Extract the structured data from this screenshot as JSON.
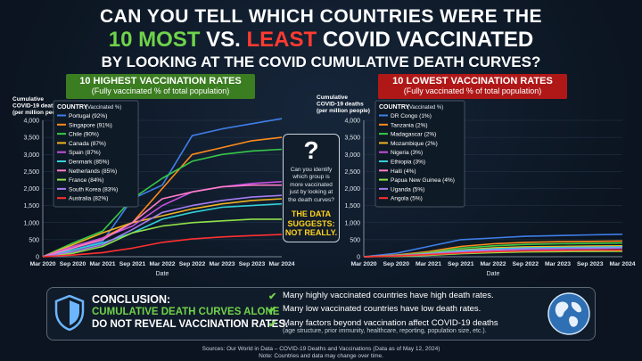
{
  "title": {
    "line1": "CAN YOU TELL WHICH COUNTRIES WERE THE",
    "line2_most": "10 MOST",
    "line2_vs": "VS.",
    "line2_least": "LEAST",
    "line2_rest": "COVID VACCINATED",
    "line3": "BY LOOKING AT THE COVID CUMULATIVE DEATH CURVES?"
  },
  "left_banner": {
    "title": "10 HIGHEST VACCINATION RATES",
    "subtitle": "(Fully vaccinated % of total population)"
  },
  "right_banner": {
    "title": "10 LOWEST VACCINATION RATES",
    "subtitle": "(Fully vaccinated % of total population)"
  },
  "ylabel_lines": [
    "Cumulative",
    "COVID-19 deaths",
    "(per million people)"
  ],
  "legend_title": "COUNTRY",
  "legend_subtitle": "(Vaccinated %)",
  "xlabel": "Date",
  "question": {
    "mark": "?",
    "text": "Can you identify which group is more vaccinated just by looking at the death curves?",
    "answer_line1": "THE DATA",
    "answer_line2": "SUGGESTS:",
    "answer_line3": "NOT REALLY."
  },
  "conclusion": {
    "title": "CONCLUSION:",
    "line2": "CUMULATIVE DEATH CURVES ALONE",
    "line3": "DO NOT REVEAL VACCINATION RATES.",
    "points": [
      {
        "text": "Many highly vaccinated countries have high death rates.",
        "sub": ""
      },
      {
        "text": "Many low vaccinated countries have low death rates.",
        "sub": ""
      },
      {
        "text": "Many factors beyond vaccination affect COVID-19 deaths",
        "sub": "(age structure, prior immunity, healthcare, reporting, population size, etc.)."
      }
    ]
  },
  "source": {
    "line1": "Sources: Our World in Data – COVID-19 Deaths and Vaccinations (Data as of May 12, 2024)",
    "line2": "Note: Countries and data may change over time."
  },
  "colors": {
    "green": "#6fd34a",
    "red": "#ff3b30",
    "banner_green": "#3b7d21",
    "banner_red": "#b01818"
  },
  "icons": [
    "shield-icon",
    "check-icon",
    "globe-icon",
    "question-mark-icon"
  ],
  "chart_data": [
    {
      "type": "line",
      "title": "10 HIGHEST VACCINATION RATES",
      "xlabel": "Date",
      "ylabel": "Cumulative COVID-19 deaths (per million people)",
      "x": [
        "Mar 2020",
        "Sep 2020",
        "Mar 2021",
        "Sep 2021",
        "Mar 2022",
        "Sep 2022",
        "Mar 2023",
        "Sep 2023",
        "Mar 2024"
      ],
      "ylim": [
        0,
        4000
      ],
      "yticks": [
        0,
        500,
        1000,
        1500,
        2000,
        2500,
        3000,
        3500,
        4000
      ],
      "legend_placement": "top-left",
      "series": [
        {
          "name": "Portugal (92%)",
          "color": "#3f7ee8",
          "values": [
            0,
            200,
            450,
            1700,
            2100,
            3550,
            3750,
            3900,
            4050
          ]
        },
        {
          "name": "Singapore (91%)",
          "color": "#ff8a1c",
          "values": [
            0,
            250,
            550,
            1000,
            2000,
            3000,
            3200,
            3400,
            3500
          ]
        },
        {
          "name": "Chile (90%)",
          "color": "#37c948",
          "values": [
            0,
            400,
            750,
            1700,
            2300,
            2800,
            3000,
            3100,
            3150
          ]
        },
        {
          "name": "Canada (87%)",
          "color": "#f0b320",
          "values": [
            0,
            350,
            700,
            1000,
            1200,
            1400,
            1550,
            1650,
            1700
          ]
        },
        {
          "name": "Spain (87%)",
          "color": "#c651e0",
          "values": [
            0,
            300,
            550,
            900,
            1500,
            1900,
            2050,
            2150,
            2200
          ]
        },
        {
          "name": "Denmark (85%)",
          "color": "#33d0d8",
          "values": [
            0,
            200,
            400,
            700,
            1100,
            1300,
            1450,
            1500,
            1550
          ]
        },
        {
          "name": "Netherlands (85%)",
          "color": "#ff7bc8",
          "values": [
            0,
            250,
            500,
            1000,
            1700,
            1900,
            2050,
            2100,
            2100
          ]
        },
        {
          "name": "France (84%)",
          "color": "#8fe04a",
          "values": [
            0,
            100,
            300,
            700,
            900,
            1000,
            1050,
            1100,
            1100
          ]
        },
        {
          "name": "South Korea (83%)",
          "color": "#a47cf0",
          "values": [
            0,
            150,
            350,
            800,
            1300,
            1500,
            1650,
            1750,
            1800
          ]
        },
        {
          "name": "Australia (82%)",
          "color": "#ff3030",
          "values": [
            0,
            50,
            120,
            250,
            420,
            520,
            580,
            620,
            650
          ]
        }
      ]
    },
    {
      "type": "line",
      "title": "10 LOWEST VACCINATION RATES",
      "xlabel": "Date",
      "ylabel": "Cumulative COVID-19 deaths (per million people)",
      "x": [
        "Mar 2020",
        "Sep 2020",
        "Mar 2021",
        "Sep 2021",
        "Mar 2022",
        "Sep 2022",
        "Mar 2023",
        "Sep 2023",
        "Mar 2024"
      ],
      "ylim": [
        0,
        4000
      ],
      "yticks": [
        0,
        500,
        1000,
        1500,
        2000,
        2500,
        3000,
        3500,
        4000
      ],
      "legend_placement": "top-left",
      "series": [
        {
          "name": "DR Congo (1%)",
          "color": "#3f7ee8",
          "values": [
            0,
            100,
            300,
            500,
            550,
            600,
            620,
            640,
            660
          ]
        },
        {
          "name": "Tanzania (2%)",
          "color": "#ff8a1c",
          "values": [
            0,
            50,
            150,
            300,
            380,
            420,
            440,
            450,
            460
          ]
        },
        {
          "name": "Madagascar (2%)",
          "color": "#37c948",
          "values": [
            0,
            40,
            120,
            250,
            320,
            360,
            380,
            390,
            400
          ]
        },
        {
          "name": "Mozambique (2%)",
          "color": "#f0b320",
          "values": [
            0,
            30,
            100,
            200,
            260,
            290,
            300,
            310,
            320
          ]
        },
        {
          "name": "Nigeria (3%)",
          "color": "#c651e0",
          "values": [
            0,
            20,
            60,
            120,
            160,
            180,
            190,
            200,
            200
          ]
        },
        {
          "name": "Ethiopia (3%)",
          "color": "#33d0d8",
          "values": [
            0,
            30,
            90,
            180,
            230,
            260,
            270,
            280,
            290
          ]
        },
        {
          "name": "Haiti (4%)",
          "color": "#ff7bc8",
          "values": [
            0,
            20,
            50,
            100,
            130,
            150,
            160,
            170,
            180
          ]
        },
        {
          "name": "Papua New Guinea (4%)",
          "color": "#8fe04a",
          "values": [
            0,
            10,
            40,
            90,
            120,
            140,
            150,
            155,
            160
          ]
        },
        {
          "name": "Uganda (5%)",
          "color": "#a47cf0",
          "values": [
            0,
            30,
            80,
            150,
            200,
            230,
            240,
            250,
            260
          ]
        },
        {
          "name": "Angola (5%)",
          "color": "#ff3030",
          "values": [
            0,
            20,
            60,
            110,
            150,
            170,
            180,
            190,
            190
          ]
        }
      ]
    }
  ]
}
